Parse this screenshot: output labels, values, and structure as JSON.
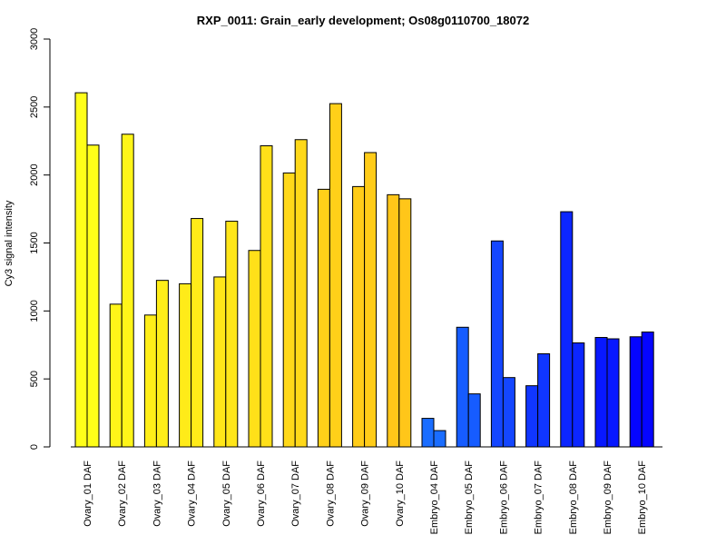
{
  "chart_data": {
    "type": "bar",
    "title": "RXP_0011: Grain_early development; Os08g0110700_18072",
    "xlabel": "",
    "ylabel": "Cy3 signal intensity",
    "ylim": [
      0,
      3000
    ],
    "yticks": [
      0,
      500,
      1000,
      1500,
      2000,
      2500,
      3000
    ],
    "grid": false,
    "legend": "none",
    "categories": [
      "Ovary_01 DAF",
      "Ovary_02 DAF",
      "Ovary_03 DAF",
      "Ovary_04 DAF",
      "Ovary_05 DAF",
      "Ovary_06 DAF",
      "Ovary_07 DAF",
      "Ovary_08 DAF",
      "Ovary_09 DAF",
      "Ovary_10 DAF",
      "Embryo_04 DAF",
      "Embryo_05 DAF",
      "Embryo_06 DAF",
      "Embryo_07 DAF",
      "Embryo_08 DAF",
      "Embryo_09 DAF",
      "Embryo_10 DAF"
    ],
    "group_colors": [
      "#ffff19",
      "#fff519",
      "#ffee19",
      "#ffeb19",
      "#ffe619",
      "#ffe019",
      "#ffd819",
      "#ffd019",
      "#ffcc19",
      "#ffc619",
      "#1a6dff",
      "#165cff",
      "#1446ff",
      "#1036ff",
      "#0c26ff",
      "#0818ff",
      "#0505ff"
    ],
    "series": [
      {
        "values": [
          2605,
          1050,
          970,
          1200,
          1250,
          1445,
          2015,
          1895,
          1915,
          1855,
          210,
          880,
          1515,
          450,
          1730,
          805,
          810
        ]
      },
      {
        "values": [
          2220,
          2300,
          1225,
          1680,
          1660,
          2215,
          2260,
          2525,
          2165,
          1825,
          120,
          390,
          510,
          685,
          765,
          795,
          845
        ]
      }
    ]
  }
}
